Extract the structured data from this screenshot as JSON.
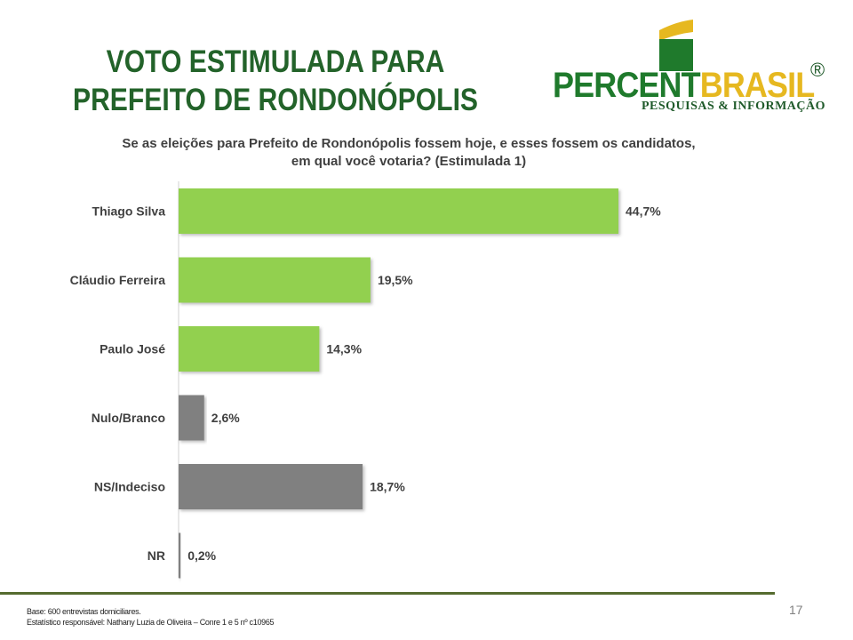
{
  "title_lines": [
    "VOTO ESTIMULADA PARA",
    "PREFEITO DE RONDONÓPOLIS"
  ],
  "logo": {
    "word_a": "PERCENT",
    "word_b": "BRASIL",
    "reg": "®",
    "sub": "PESQUISAS & INFORMAÇÃO",
    "green": "#1f7a2c",
    "yellow": "#e6b820"
  },
  "subtitle_lines": [
    "Se as eleições para Prefeito de Rondonópolis fossem hoje, e esses fossem os candidatos,",
    "em qual você votaria? (Estimulada 1)"
  ],
  "chart_data": {
    "type": "bar",
    "orientation": "horizontal",
    "title": "Se as eleições para Prefeito de Rondonópolis fossem hoje, e esses fossem os candidatos, em qual você votaria? (Estimulada 1)",
    "categories": [
      "Thiago Silva",
      "Cláudio Ferreira",
      "Paulo José",
      "Nulo/Branco",
      "NS/Indeciso",
      "NR"
    ],
    "values": [
      44.7,
      19.5,
      14.3,
      2.6,
      18.7,
      0.2
    ],
    "value_labels": [
      "44,7%",
      "19,5%",
      "14,3%",
      "2,6%",
      "18,7%",
      "0,2%"
    ],
    "colors": [
      "#92d050",
      "#92d050",
      "#92d050",
      "#808080",
      "#808080",
      "#808080"
    ],
    "xlim": [
      0,
      50
    ],
    "xlabel": "",
    "ylabel": "",
    "grid": false,
    "legend": "none"
  },
  "footer": {
    "page_number": "17",
    "base_note": "Base: 600 entrevistas domiciliares.",
    "stat_note": "Estatístico responsável: Nathany Luzia de Oliveira – Conre 1 e 5 nº c10965"
  }
}
